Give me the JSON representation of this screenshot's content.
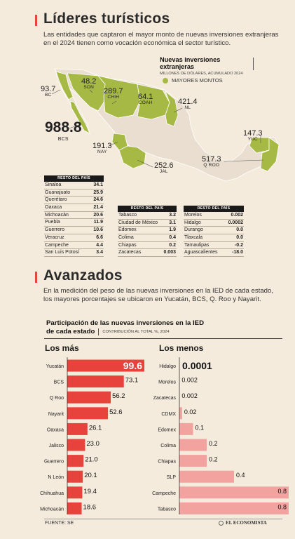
{
  "section1": {
    "title": "Líderes turísticos",
    "intro": "Las entidades que captaron el mayor monto de nuevas inversiones extranjeras en el 2024 tienen como vocación económica el sector turístico.",
    "legend_title": "Nuevas inversiones extranjeras",
    "legend_subtitle": "MILLONES DE DÓLARES, ACUMULADO 2024",
    "legend_item": "MAYORES MONTOS",
    "highlight_color": "#a6b945"
  },
  "map_labels": [
    {
      "value": "93.7",
      "name": "BC"
    },
    {
      "value": "48.2",
      "name": "SON"
    },
    {
      "value": "289.7",
      "name": "CHIH"
    },
    {
      "value": "64.1",
      "name": "COAH"
    },
    {
      "value": "421.4",
      "name": "NL"
    },
    {
      "value": "988.8",
      "name": "BCS"
    },
    {
      "value": "191.3",
      "name": "NAY"
    },
    {
      "value": "252.6",
      "name": "JAL"
    },
    {
      "value": "517.3",
      "name": "Q ROO"
    },
    {
      "value": "147.3",
      "name": "YUC"
    }
  ],
  "rest_header": "RESTO DEL PAÍS",
  "rest_col1": [
    {
      "state": "Sinaloa",
      "value": "34.1"
    },
    {
      "state": "Guanajuato",
      "value": "25.9"
    },
    {
      "state": "Querétaro",
      "value": "24.6"
    },
    {
      "state": "Oaxaca",
      "value": "21.4"
    },
    {
      "state": "Michoacán",
      "value": "20.6"
    },
    {
      "state": "Puebla",
      "value": "11.9"
    },
    {
      "state": "Guerrero",
      "value": "10.6"
    },
    {
      "state": "Veracruz",
      "value": "6.6"
    },
    {
      "state": "Campeche",
      "value": "4.4"
    },
    {
      "state": "San Luis Potosí",
      "value": "3.4"
    }
  ],
  "rest_col2": [
    {
      "state": "Tabasco",
      "value": "3.2"
    },
    {
      "state": "Ciudad de México",
      "value": "3.1"
    },
    {
      "state": "Edomex",
      "value": "1.9"
    },
    {
      "state": "Colima",
      "value": "0.4"
    },
    {
      "state": "Chiapas",
      "value": "0.2"
    },
    {
      "state": "Zacatecas",
      "value": "0.003"
    }
  ],
  "rest_col3": [
    {
      "state": "Morelos",
      "value": "0.002"
    },
    {
      "state": "Hidalgo",
      "value": "0.0002"
    },
    {
      "state": "Durango",
      "value": "0.0"
    },
    {
      "state": "Tlaxcala",
      "value": "0.0"
    },
    {
      "state": "Tamaulipas",
      "value": "-0.2"
    },
    {
      "state": "Aguascalientes",
      "value": "-18.0"
    }
  ],
  "section2": {
    "title": "Avanzados",
    "intro": "En la medición del peso de las nuevas inversiones en la IED de cada estado, los mayores porcentajes se ubicaron en Yucatán, BCS, Q. Roo y Nayarit.",
    "box_title_1": "Participación de las nuevas inversiones en la IED",
    "box_title_2": "de cada estado",
    "box_subtitle": "CONTRIBUCIÓN AL TOTAL %, 2024"
  },
  "chart_data": [
    {
      "type": "bar",
      "title": "Los más",
      "categories": [
        "Yucatán",
        "BCS",
        "Q Roo",
        "Nayarit",
        "Oaxaca",
        "Jalisco",
        "Guerrero",
        "N León",
        "Chihuahua",
        "Michoacán"
      ],
      "values": [
        99.6,
        73.1,
        56.2,
        52.6,
        26.1,
        23.0,
        21.0,
        20.1,
        19.4,
        18.6
      ],
      "labels": [
        "99.6",
        "73.1",
        "56.2",
        "52.6",
        "26.1",
        "23.0",
        "21.0",
        "20.1",
        "19.4",
        "18.6"
      ],
      "color": "#e8423c"
    },
    {
      "type": "bar",
      "title": "Los menos",
      "categories": [
        "Hidalgo",
        "Morelos",
        "Zacatecas",
        "CDMX",
        "Edomex",
        "Colima",
        "Chiapas",
        "SLP",
        "Campeche",
        "Tabasco"
      ],
      "values": [
        0.0001,
        0.002,
        0.002,
        0.02,
        0.1,
        0.2,
        0.2,
        0.4,
        0.8,
        0.8
      ],
      "labels": [
        "0.0001",
        "0.002",
        "0.002",
        "0.02",
        "0.1",
        "0.2",
        "0.2",
        "0.4",
        "0.8",
        "0.8"
      ],
      "color": "#f2a3a0"
    }
  ],
  "footer": {
    "source": "FUENTE: SE",
    "brand": "EL ECONOMISTA"
  }
}
